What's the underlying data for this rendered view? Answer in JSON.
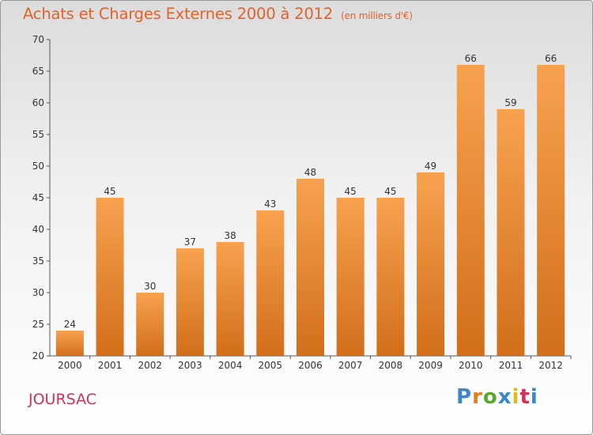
{
  "chart_data": {
    "type": "bar",
    "title": "Achats et Charges Externes 2000 à 2012",
    "unit": "(en milliers d'€)",
    "categories": [
      "2000",
      "2001",
      "2002",
      "2003",
      "2004",
      "2005",
      "2006",
      "2007",
      "2008",
      "2009",
      "2010",
      "2011",
      "2012"
    ],
    "values": [
      24,
      45,
      30,
      37,
      38,
      43,
      48,
      45,
      45,
      49,
      66,
      59,
      66
    ],
    "ylim": [
      20,
      70
    ],
    "yticks": [
      20,
      25,
      30,
      35,
      40,
      45,
      50,
      55,
      60,
      65,
      70
    ],
    "grid": false,
    "colors": {
      "bar_light": "#f7a24f",
      "bar_dark": "#d26e1a",
      "title": "#e3612b"
    }
  },
  "commune": "JOURSAC",
  "logo": {
    "text": "Proxiti",
    "letters": [
      "P",
      "r",
      "o",
      "x",
      "i",
      "t",
      "i"
    ],
    "colors": [
      "#3a88c8",
      "#e57b22",
      "#5aa832",
      "#3a88c8",
      "#e0b81c",
      "#d0325a",
      "#3a88c8"
    ]
  }
}
